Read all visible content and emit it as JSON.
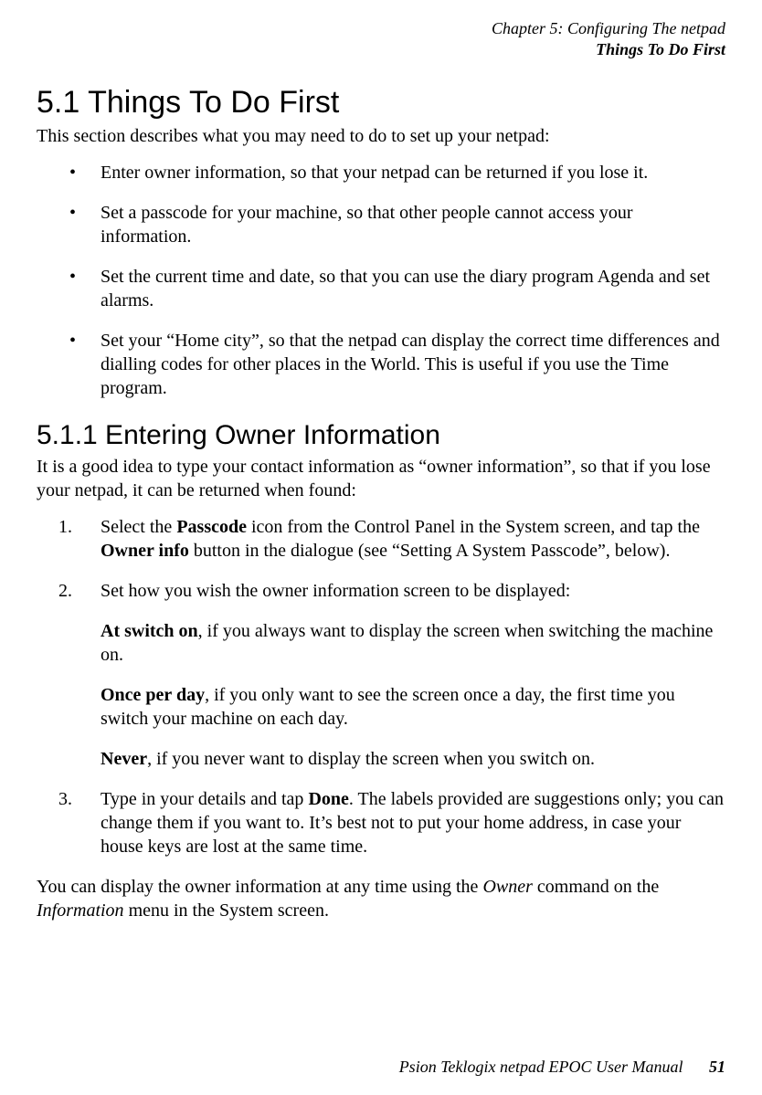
{
  "header": {
    "chapter_line": "Chapter 5:  Configuring The netpad",
    "section_line": "Things To Do First"
  },
  "section_5_1": {
    "heading": "5.1  Things To Do First",
    "intro": "This section describes what you may need to do to set up your netpad:",
    "bullets": [
      "Enter owner information, so that your netpad can be returned if you lose it.",
      "Set a passcode for your machine, so that other people cannot access your information.",
      "Set the current time and date, so that you can use the diary program Agenda and set alarms.",
      "Set your “Home city”, so that the netpad can display the correct time differences and dialling codes for other places in the World. This is useful if you use the Time program."
    ]
  },
  "section_5_1_1": {
    "heading": "5.1.1  Entering Owner Information",
    "intro": "It is a good idea to type your contact information as “owner information”, so that if you lose your netpad, it can be returned when found:",
    "step1": {
      "pre1": "Select the ",
      "bold1": "Passcode",
      "mid1": " icon from the Control Panel in the System screen, and tap the ",
      "bold2": "Owner info",
      "post1": " button in the dialogue (see “Setting A System Passcode”, below)."
    },
    "step2": {
      "lead": "Set how you wish the owner information screen to be displayed:",
      "opt1_bold": "At switch on",
      "opt1_rest": ", if you always want to display the screen when switching the machine on.",
      "opt2_bold": "Once per day",
      "opt2_rest": ", if you only want to see the screen once a day, the first time you switch your machine on each day.",
      "opt3_bold": "Never",
      "opt3_rest": ", if you never want to display the screen when you switch on."
    },
    "step3": {
      "pre": "Type in your details and tap ",
      "bold": "Done",
      "post": ". The labels provided are suggestions only; you can change them if you want to. It’s best not to put your home address, in case your house keys are lost at the same time."
    },
    "closing": {
      "pre": "You can display the owner information at any time using the ",
      "ital1": "Owner",
      "mid": " command on the ",
      "ital2": "Information",
      "post": " menu in the System screen."
    }
  },
  "footer": {
    "manual": "Psion Teklogix netpad EPOC User Manual",
    "page": "51"
  }
}
